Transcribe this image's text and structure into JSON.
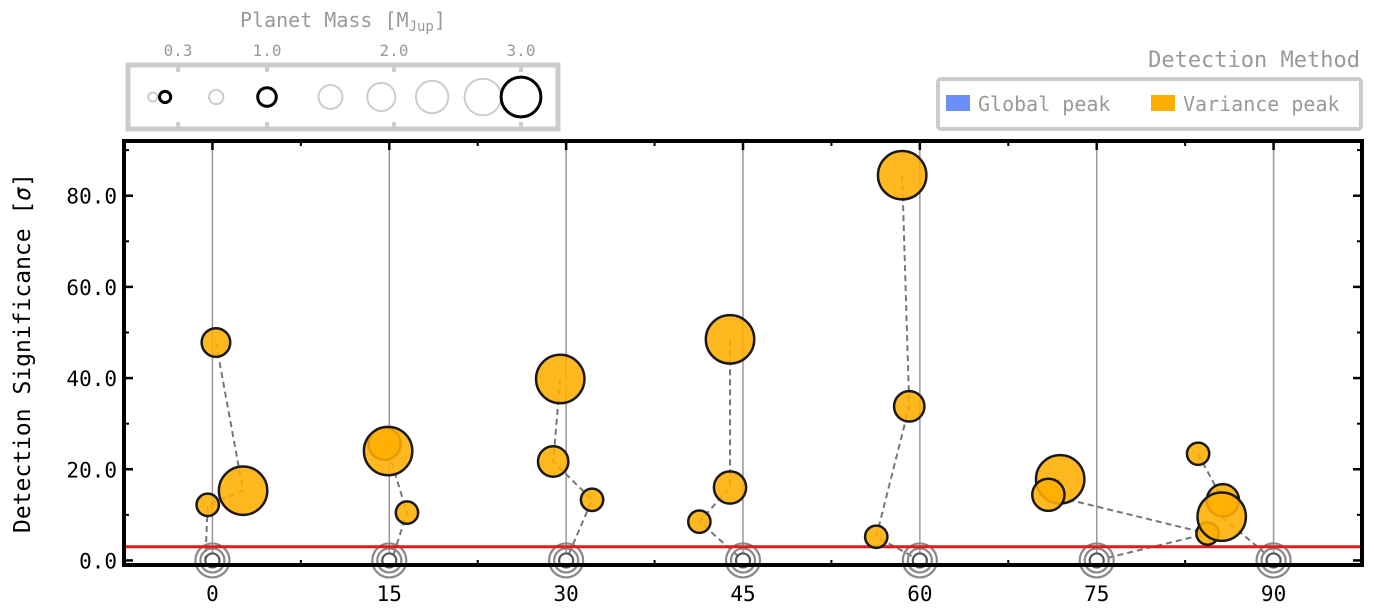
{
  "size_legend": {
    "title": "Planet Mass [M",
    "title_sub": "Jup",
    "title_close": "]",
    "ticks": [
      {
        "value": 0.3,
        "label": "0.3"
      },
      {
        "value": 1.0,
        "label": "1.0"
      },
      {
        "value": 2.0,
        "label": "2.0"
      },
      {
        "value": 3.0,
        "label": "3.0"
      }
    ],
    "highlighted_masses": [
      0.3,
      1.0,
      3.0
    ],
    "faded_masses": [
      0.1,
      0.6,
      1.5,
      1.9,
      2.3,
      2.7
    ]
  },
  "method_legend": {
    "title": "Detection Method",
    "entries": [
      {
        "label": "Global peak",
        "color": "#6b8ff8"
      },
      {
        "label": "Variance peak",
        "color": "#ffae00"
      }
    ]
  },
  "chart_data": {
    "type": "scatter",
    "xlabel": "",
    "ylabel": "Detection Significance [σ]",
    "ylabel_text": "Detection Significance [",
    "ylabel_symbol": "σ",
    "ylabel_close": "]",
    "xticks": [
      0,
      15,
      30,
      45,
      60,
      75,
      90
    ],
    "xtick_labels": [
      "0",
      "15",
      "30",
      "45",
      "60",
      "75",
      "90"
    ],
    "yticks": [
      0,
      20,
      40,
      60,
      80
    ],
    "ytick_labels": [
      "0.0",
      "20.0",
      "40.0",
      "60.0",
      "80.0"
    ],
    "xlim": [
      -7.5,
      97.5
    ],
    "ylim": [
      -1,
      92
    ],
    "threshold": {
      "y": 3,
      "color": "#e41a1c"
    },
    "marker_color": "#ffae00",
    "groups": [
      {
        "x": 0,
        "points": [
          {
            "x": 0.3,
            "y": 47.8,
            "mass": 0.7
          },
          {
            "x": 2.6,
            "y": 15.3,
            "mass": 1.8
          },
          {
            "x": -0.4,
            "y": 12.2,
            "mass": 0.35
          },
          {
            "x": -0.6,
            "y": 0.0,
            "mass": 0.0
          }
        ]
      },
      {
        "x": 15,
        "points": [
          {
            "x": 14.6,
            "y": 25.6,
            "mass": 0.9
          },
          {
            "x": 14.9,
            "y": 24.0,
            "mass": 1.8
          },
          {
            "x": 16.5,
            "y": 10.5,
            "mass": 0.35
          },
          {
            "x": 15.2,
            "y": 0.0,
            "mass": 0.0
          }
        ]
      },
      {
        "x": 30,
        "points": [
          {
            "x": 29.5,
            "y": 39.8,
            "mass": 1.8
          },
          {
            "x": 28.9,
            "y": 21.7,
            "mass": 0.8
          },
          {
            "x": 32.2,
            "y": 13.3,
            "mass": 0.35
          },
          {
            "x": 30.0,
            "y": 0.0,
            "mass": 0.0
          }
        ]
      },
      {
        "x": 45,
        "points": [
          {
            "x": 43.9,
            "y": 48.5,
            "mass": 1.8
          },
          {
            "x": 43.9,
            "y": 16.0,
            "mass": 0.9
          },
          {
            "x": 41.3,
            "y": 8.5,
            "mass": 0.35
          },
          {
            "x": 45.0,
            "y": 0.0,
            "mass": 0.0
          }
        ]
      },
      {
        "x": 60,
        "points": [
          {
            "x": 58.5,
            "y": 84.5,
            "mass": 1.8
          },
          {
            "x": 59.1,
            "y": 33.8,
            "mass": 0.8
          },
          {
            "x": 56.3,
            "y": 5.2,
            "mass": 0.35
          },
          {
            "x": 60.0,
            "y": 0.0,
            "mass": 0.0
          }
        ]
      },
      {
        "x": 75,
        "points": [
          {
            "x": 71.9,
            "y": 17.8,
            "mass": 1.8
          },
          {
            "x": 70.9,
            "y": 14.4,
            "mass": 0.9
          },
          {
            "x": 84.4,
            "y": 5.9,
            "mass": 0.35
          },
          {
            "x": 75.0,
            "y": 0.0,
            "mass": 0.0
          }
        ]
      },
      {
        "x": 90,
        "points": [
          {
            "x": 83.6,
            "y": 23.4,
            "mass": 0.35
          },
          {
            "x": 85.7,
            "y": 13.2,
            "mass": 0.9
          },
          {
            "x": 85.6,
            "y": 9.6,
            "mass": 1.8
          },
          {
            "x": 90.0,
            "y": 0.0,
            "mass": 0.0
          }
        ]
      }
    ]
  }
}
